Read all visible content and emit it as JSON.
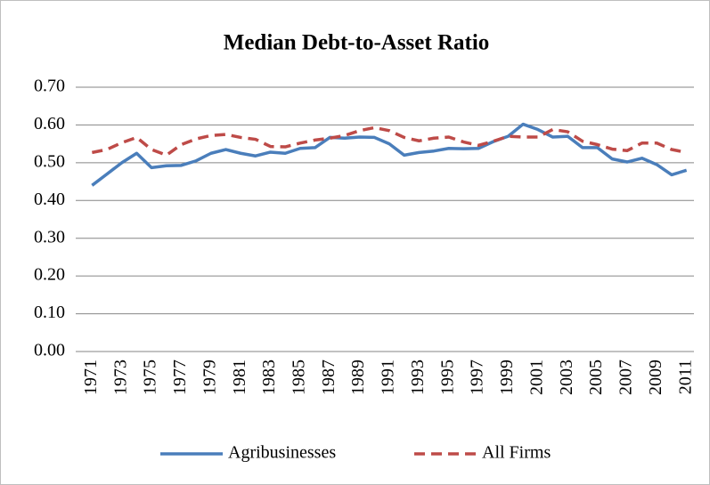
{
  "chart_data": {
    "type": "line",
    "title": "Median Debt-to-Asset Ratio",
    "categories": [
      "1971",
      null,
      "1973",
      null,
      "1975",
      null,
      "1977",
      null,
      "1979",
      null,
      "1981",
      null,
      "1983",
      null,
      "1985",
      null,
      "1987",
      null,
      "1989",
      null,
      "1991",
      null,
      "1993",
      null,
      "1995",
      null,
      "1997",
      null,
      "1999",
      null,
      "2001",
      null,
      "2003",
      null,
      "2005",
      null,
      "2007",
      null,
      "2009",
      null,
      "2011"
    ],
    "series": [
      {
        "name": "Agribusinesses",
        "color": "#4a7ebb",
        "dash": false,
        "values": [
          0.44,
          0.47,
          0.5,
          0.525,
          0.487,
          0.492,
          0.493,
          0.505,
          0.525,
          0.535,
          0.525,
          0.518,
          0.528,
          0.525,
          0.538,
          0.54,
          0.567,
          0.565,
          0.568,
          0.567,
          0.55,
          0.52,
          0.527,
          0.531,
          0.538,
          0.537,
          0.538,
          0.556,
          0.57,
          0.602,
          0.588,
          0.568,
          0.57,
          0.54,
          0.54,
          0.51,
          0.502,
          0.512,
          0.495,
          0.468,
          0.48
        ]
      },
      {
        "name": "All Firms",
        "color": "#be4b48",
        "dash": true,
        "values": [
          0.527,
          0.535,
          0.553,
          0.567,
          0.535,
          0.52,
          0.548,
          0.563,
          0.572,
          0.575,
          0.567,
          0.562,
          0.543,
          0.542,
          0.552,
          0.56,
          0.565,
          0.572,
          0.585,
          0.593,
          0.585,
          0.567,
          0.558,
          0.565,
          0.568,
          0.555,
          0.546,
          0.557,
          0.57,
          0.568,
          0.568,
          0.588,
          0.582,
          0.557,
          0.548,
          0.536,
          0.532,
          0.552,
          0.552,
          0.535,
          0.527
        ]
      }
    ],
    "ylim": [
      0,
      0.7
    ],
    "yticks": [
      {
        "value": 0,
        "label": "0.00"
      },
      {
        "value": 0.1,
        "label": "0.10"
      },
      {
        "value": 0.2,
        "label": "0.20"
      },
      {
        "value": 0.3,
        "label": "0.30"
      },
      {
        "value": 0.4,
        "label": "0.40"
      },
      {
        "value": 0.5,
        "label": "0.50"
      },
      {
        "value": 0.6,
        "label": "0.60"
      },
      {
        "value": 0.7,
        "label": "0.70"
      }
    ],
    "grid": true,
    "legend": "bottom"
  }
}
